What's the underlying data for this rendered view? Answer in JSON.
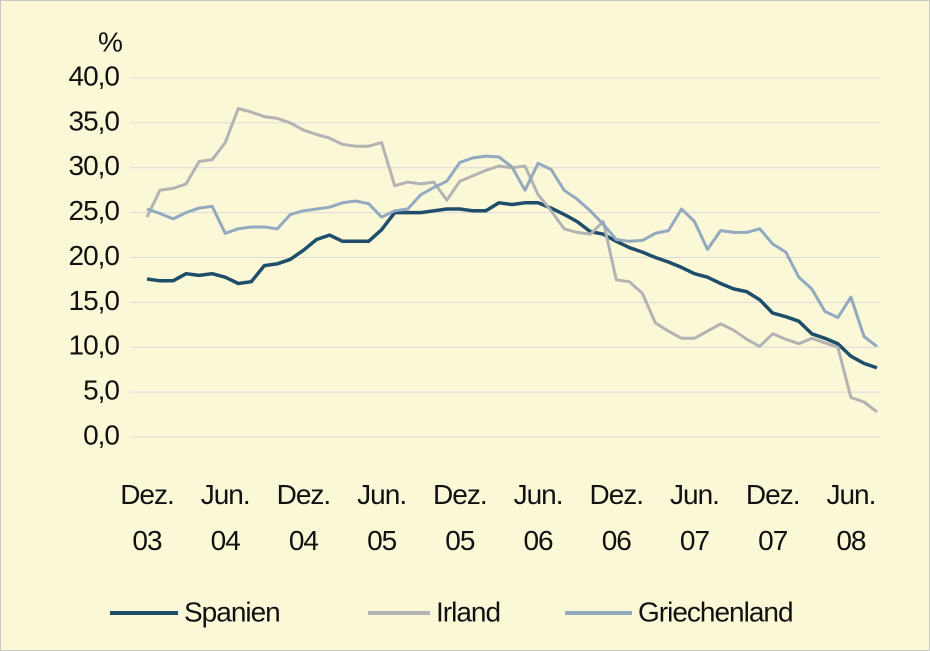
{
  "chart_data": {
    "type": "line",
    "y_label": "%",
    "categories": [
      "Dez. 03",
      null,
      null,
      null,
      null,
      null,
      "Jun. 04",
      null,
      null,
      null,
      null,
      null,
      "Dez. 04",
      null,
      null,
      null,
      null,
      null,
      "Jun. 05",
      null,
      null,
      null,
      null,
      null,
      "Dez. 05",
      null,
      null,
      null,
      null,
      null,
      "Jun. 06",
      null,
      null,
      null,
      null,
      null,
      "Dez. 06",
      null,
      null,
      null,
      null,
      null,
      "Jun. 07",
      null,
      null,
      null,
      null,
      null,
      "Dez. 07",
      null,
      null,
      null,
      null,
      null,
      "Jun. 08",
      null,
      null
    ],
    "series": [
      {
        "name": "Spanien",
        "color": "#1f4e6b",
        "values": [
          17.6,
          17.4,
          17.4,
          18.2,
          18.0,
          18.2,
          17.8,
          17.1,
          17.3,
          19.1,
          19.3,
          19.8,
          20.8,
          22.0,
          22.5,
          21.8,
          21.8,
          21.8,
          23.1,
          25.0,
          25.0,
          25.0,
          25.2,
          25.4,
          25.4,
          25.2,
          25.2,
          26.1,
          25.9,
          26.1,
          26.1,
          25.5,
          24.8,
          24.0,
          22.9,
          22.6,
          21.8,
          21.1,
          20.6,
          20.0,
          19.5,
          18.9,
          18.2,
          17.8,
          17.1,
          16.5,
          16.2,
          15.3,
          13.8,
          13.4,
          12.9,
          11.5,
          11.0,
          10.4,
          9.0,
          8.2,
          7.7
        ]
      },
      {
        "name": "Irland",
        "color": "#b3b3b3",
        "values": [
          24.5,
          27.5,
          27.7,
          28.2,
          30.7,
          30.9,
          32.8,
          36.6,
          36.2,
          35.7,
          35.5,
          35.0,
          34.2,
          33.7,
          33.3,
          32.6,
          32.4,
          32.4,
          32.8,
          28.0,
          28.4,
          28.2,
          28.4,
          26.4,
          28.5,
          29.1,
          29.7,
          30.2,
          30.0,
          30.2,
          27.0,
          25.2,
          23.2,
          22.8,
          22.6,
          24.0,
          17.5,
          17.3,
          16.0,
          12.7,
          11.8,
          11.0,
          11.0,
          11.8,
          12.6,
          11.9,
          10.9,
          10.1,
          11.5,
          10.9,
          10.4,
          11.0,
          10.5,
          10.0,
          4.4,
          3.9,
          2.8
        ]
      },
      {
        "name": "Griechenland",
        "color": "#93a9bf",
        "values": [
          25.4,
          24.9,
          24.3,
          25.0,
          25.5,
          25.7,
          22.7,
          23.2,
          23.4,
          23.4,
          23.2,
          24.8,
          25.2,
          25.4,
          25.6,
          26.1,
          26.3,
          26.0,
          24.5,
          25.2,
          25.4,
          27.0,
          27.8,
          28.5,
          30.6,
          31.1,
          31.3,
          31.2,
          30.1,
          27.5,
          30.5,
          29.8,
          27.5,
          26.5,
          25.2,
          23.7,
          22.0,
          21.8,
          21.9,
          22.7,
          23.0,
          25.4,
          24.0,
          20.9,
          23.0,
          22.8,
          22.8,
          23.2,
          21.5,
          20.6,
          17.8,
          16.5,
          14.0,
          13.3,
          15.6,
          11.2,
          10.1
        ]
      }
    ],
    "ylim": [
      0,
      40
    ],
    "yticks": [
      {
        "value": 0,
        "label": "0,0"
      },
      {
        "value": 5,
        "label": "5,0"
      },
      {
        "value": 10,
        "label": "10,0"
      },
      {
        "value": 15,
        "label": "15,0"
      },
      {
        "value": 20,
        "label": "20,0"
      },
      {
        "value": 25,
        "label": "25,0"
      },
      {
        "value": 30,
        "label": "30,0"
      },
      {
        "value": 35,
        "label": "35,0"
      },
      {
        "value": 40,
        "label": "40,0"
      }
    ],
    "grid": true,
    "legend": "bottom"
  }
}
